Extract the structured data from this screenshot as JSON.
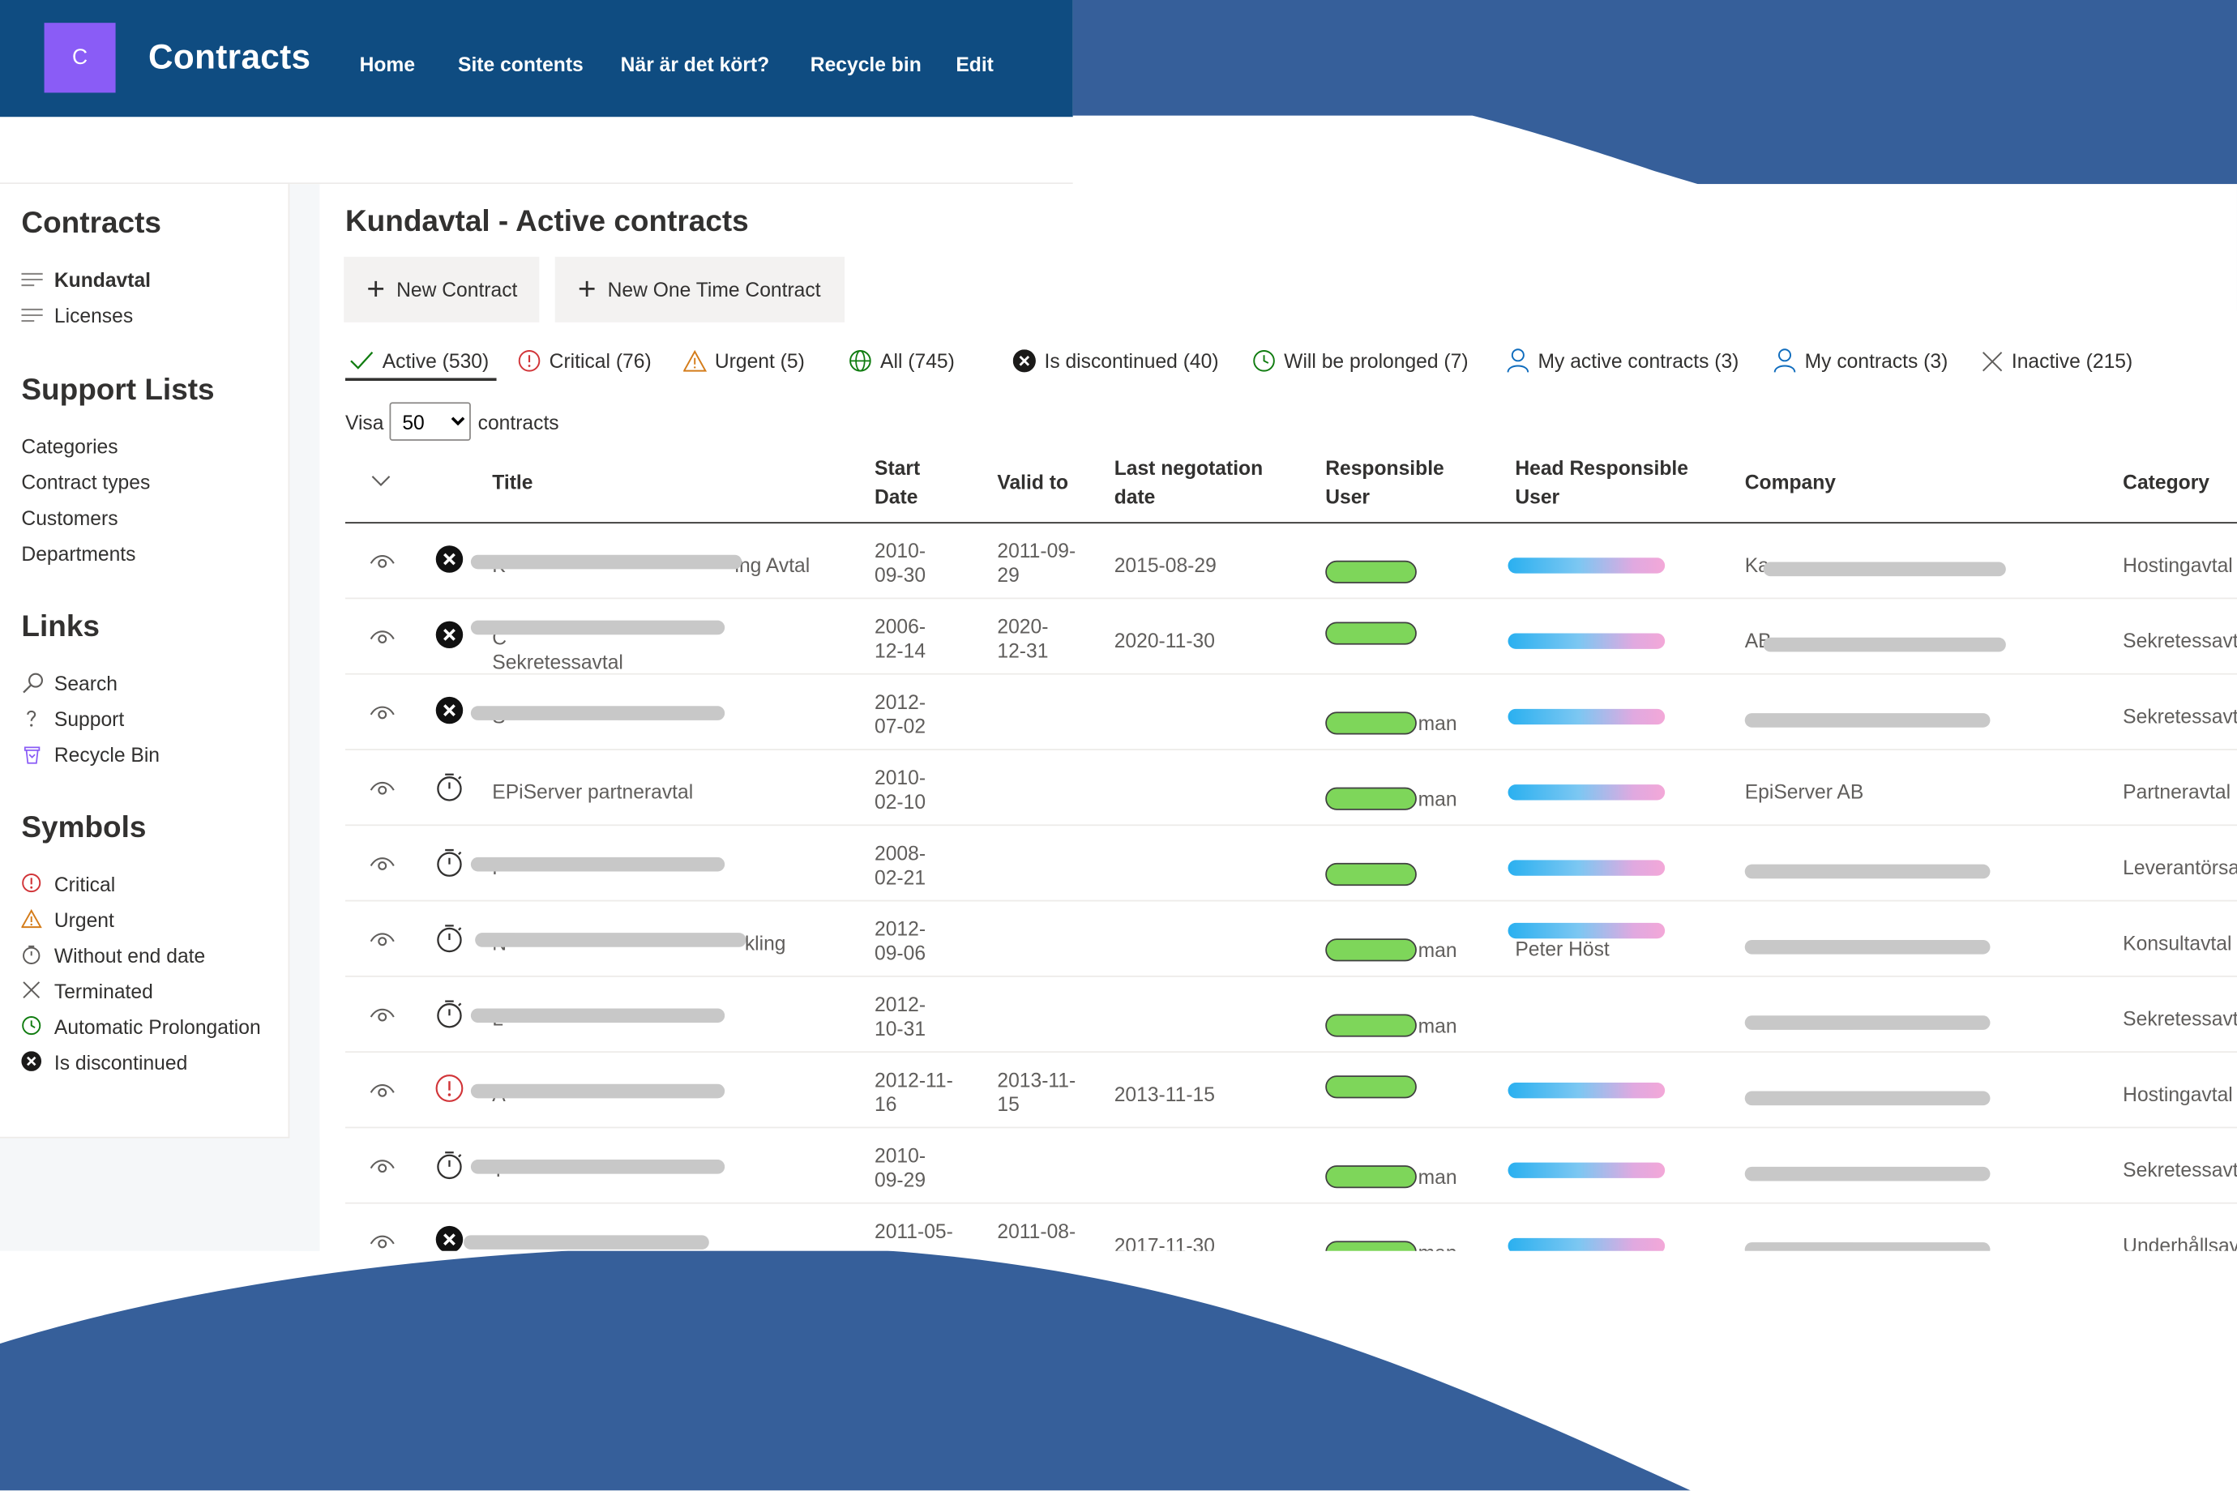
{
  "site": {
    "logo_letter": "C",
    "title": "Contracts",
    "nav": [
      "Home",
      "Site contents",
      "När är det kört?",
      "Recycle bin",
      "Edit"
    ]
  },
  "leftnav": {
    "contracts_heading": "Contracts",
    "contracts_items": [
      "Kundavtal",
      "Licenses"
    ],
    "support_heading": "Support Lists",
    "support_items": [
      "Categories",
      "Contract types",
      "Customers",
      "Departments"
    ],
    "links_heading": "Links",
    "links_items": [
      {
        "label": "Search",
        "icon": "search-icon"
      },
      {
        "label": "Support",
        "icon": "question-icon"
      },
      {
        "label": "Recycle Bin",
        "icon": "recycle-bin-icon"
      }
    ],
    "symbols_heading": "Symbols",
    "symbols_items": [
      {
        "label": "Critical",
        "icon": "critical-icon"
      },
      {
        "label": "Urgent",
        "icon": "warning-icon"
      },
      {
        "label": "Without end date",
        "icon": "stopwatch-icon"
      },
      {
        "label": "Terminated",
        "icon": "x-icon"
      },
      {
        "label": "Automatic Prolongation",
        "icon": "clock-icon"
      },
      {
        "label": "Is discontinued",
        "icon": "discontinued-icon"
      }
    ]
  },
  "main": {
    "title": "Kundavtal - Active contracts",
    "commands": [
      "New Contract",
      "New One Time Contract"
    ],
    "pivots": [
      {
        "label": "Active (530)",
        "icon": "check-icon",
        "selected": true
      },
      {
        "label": "Critical (76)",
        "icon": "critical-icon"
      },
      {
        "label": "Urgent (5)",
        "icon": "warning-icon"
      },
      {
        "label": "All (745)",
        "icon": "globe-icon"
      },
      {
        "label": "Is discontinued (40)",
        "icon": "discontinued-icon"
      },
      {
        "label": "Will be prolonged (7)",
        "icon": "clock-icon"
      },
      {
        "label": "My active contracts (3)",
        "icon": "person-icon"
      },
      {
        "label": "My contracts (3)",
        "icon": "person-icon"
      },
      {
        "label": "Inactive (215)",
        "icon": "x-icon"
      }
    ],
    "visa_label": "Visa",
    "page_size": "50",
    "page_size_options": [
      "50"
    ],
    "contracts_label": "contracts",
    "columns": [
      "Title",
      "Start Date",
      "Valid to",
      "Last negotation date",
      "Responsible User",
      "Head Responsible User",
      "Company",
      "Category"
    ],
    "rows": [
      {
        "status": "discontinued",
        "title_prefix": "K",
        "title_suffix": "ing Avtal",
        "title_line2": "",
        "start": "2010-09-30",
        "valid": "2011-09-29",
        "last": "2015-08-29",
        "resp_suffix": "",
        "head_text": "",
        "company_prefix": "Ka",
        "company_text": "",
        "category": "Hostingavtal"
      },
      {
        "status": "discontinued",
        "title_prefix": "C",
        "title_suffix": "",
        "title_line2": "Sekretessavtal",
        "start": "2006-12-14",
        "valid": "2020-12-31",
        "last": "2020-11-30",
        "resp_suffix": "",
        "head_text": "",
        "company_prefix": "AB",
        "company_text": "",
        "category": "Sekretessavtal"
      },
      {
        "status": "discontinued",
        "title_prefix": "S",
        "title_suffix": "",
        "title_line2": "",
        "start": "2012-07-02",
        "valid": "",
        "last": "",
        "resp_suffix": "man",
        "head_text": "",
        "company_prefix": "",
        "company_text": "",
        "category": "Sekretessavtal"
      },
      {
        "status": "stopwatch",
        "title_prefix": "EPiServer partneravtal",
        "title_suffix": "",
        "title_line2": "",
        "start": "2010-02-10",
        "valid": "",
        "last": "",
        "resp_suffix": "man",
        "head_text": "",
        "company_prefix": "",
        "company_text": "EpiServer AB",
        "category": "Partneravtal"
      },
      {
        "status": "stopwatch",
        "title_prefix": "F",
        "title_suffix": "",
        "title_line2": "",
        "start": "2008-02-21",
        "valid": "",
        "last": "",
        "resp_suffix": "",
        "head_text": "",
        "company_prefix": "",
        "company_text": "",
        "category": "Leverantörsav"
      },
      {
        "status": "stopwatch",
        "title_prefix": "N",
        "title_suffix": "kling",
        "title_line2": "",
        "start": "2012-09-06",
        "valid": "",
        "last": "",
        "resp_suffix": "man",
        "head_text": "Peter Höst",
        "company_prefix": "",
        "company_text": "",
        "category": "Konsultavtal"
      },
      {
        "status": "stopwatch",
        "title_prefix": "L",
        "title_suffix": "",
        "title_line2": "",
        "start": "2012-10-31",
        "valid": "",
        "last": "",
        "resp_suffix": "man",
        "head_text": "",
        "company_prefix": "",
        "company_text": "",
        "category": "Sekretessavtal"
      },
      {
        "status": "critical",
        "title_prefix": "A",
        "title_suffix": "",
        "title_line2": "",
        "start": "2012-11-16",
        "valid": "2013-11-15",
        "last": "2013-11-15",
        "resp_suffix": "",
        "head_text": "",
        "company_prefix": "",
        "company_text": "",
        "category": "Hostingavtal"
      },
      {
        "status": "stopwatch",
        "title_prefix": "T",
        "title_suffix": "",
        "title_line2": "",
        "start": "2010-09-29",
        "valid": "",
        "last": "",
        "resp_suffix": "man",
        "head_text": "",
        "company_prefix": "",
        "company_text": "",
        "category": "Sekretessavtal"
      },
      {
        "status": "discontinued",
        "title_prefix": "",
        "title_suffix": "",
        "title_line2": "",
        "start": "2011-05-",
        "valid": "2011-08-",
        "last": "2017-11-30",
        "resp_suffix": "man",
        "head_text": "",
        "company_prefix": "",
        "company_text": "",
        "category": "Underhållsavt"
      }
    ]
  },
  "colors": {
    "suitebar": "#0f4c81",
    "logo": "#8a5cf6",
    "decor_wave": "#365f9a",
    "critical": "#d13438",
    "urgent": "#d47c1a",
    "prolong": "#107c10",
    "person": "#0f6cbd"
  }
}
